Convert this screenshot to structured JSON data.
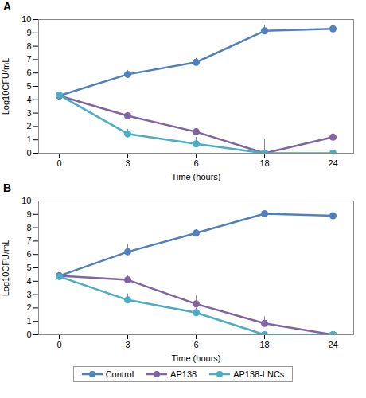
{
  "chart_data": [
    {
      "type": "line",
      "title": "A",
      "xlabel": "Time (hours)",
      "ylabel": "Log10CFU/mL",
      "categories": [
        "0",
        "3",
        "6",
        "18",
        "24"
      ],
      "ylim": [
        0,
        10
      ],
      "yticks": [
        0,
        1,
        2,
        3,
        4,
        5,
        6,
        7,
        8,
        9,
        10
      ],
      "grid": false,
      "marker": "circle",
      "series": [
        {
          "name": "Control",
          "color": "#4f81bd",
          "values": [
            4.3,
            5.9,
            6.8,
            9.15,
            9.3
          ],
          "errors": [
            0.1,
            0.3,
            0.3,
            0.4,
            0.15
          ]
        },
        {
          "name": "AP138",
          "color": "#8064a2",
          "values": [
            4.3,
            2.8,
            1.6,
            0,
            1.2
          ],
          "errors": [
            0.1,
            0.25,
            0.15,
            1.05,
            0.1
          ]
        },
        {
          "name": "AP138-LNCs",
          "color": "#4bacc6",
          "values": [
            4.35,
            1.45,
            0.7,
            0,
            0
          ],
          "errors": [
            0.1,
            0.35,
            0.5,
            0,
            0
          ]
        }
      ]
    },
    {
      "type": "line",
      "title": "B",
      "xlabel": "Time (hours)",
      "ylabel": "Log10CFU/mL",
      "categories": [
        "0",
        "3",
        "6",
        "18",
        "24"
      ],
      "ylim": [
        0,
        10
      ],
      "yticks": [
        0,
        1,
        2,
        3,
        4,
        5,
        6,
        7,
        8,
        9,
        10
      ],
      "grid": false,
      "marker": "circle",
      "legend": "bottom",
      "series": [
        {
          "name": "Control",
          "color": "#4f81bd",
          "values": [
            4.4,
            6.2,
            7.6,
            9.05,
            8.9
          ],
          "errors": [
            0.1,
            0.55,
            0.25,
            0.05,
            0.1
          ]
        },
        {
          "name": "AP138",
          "color": "#8064a2",
          "values": [
            4.4,
            4.1,
            2.3,
            0.85,
            0
          ],
          "errors": [
            0.1,
            0.3,
            0.6,
            0.5,
            0
          ]
        },
        {
          "name": "AP138-LNCs",
          "color": "#4bacc6",
          "values": [
            4.35,
            2.6,
            1.65,
            0,
            0
          ],
          "errors": [
            0.1,
            0.45,
            0.35,
            0,
            0
          ]
        }
      ]
    }
  ]
}
